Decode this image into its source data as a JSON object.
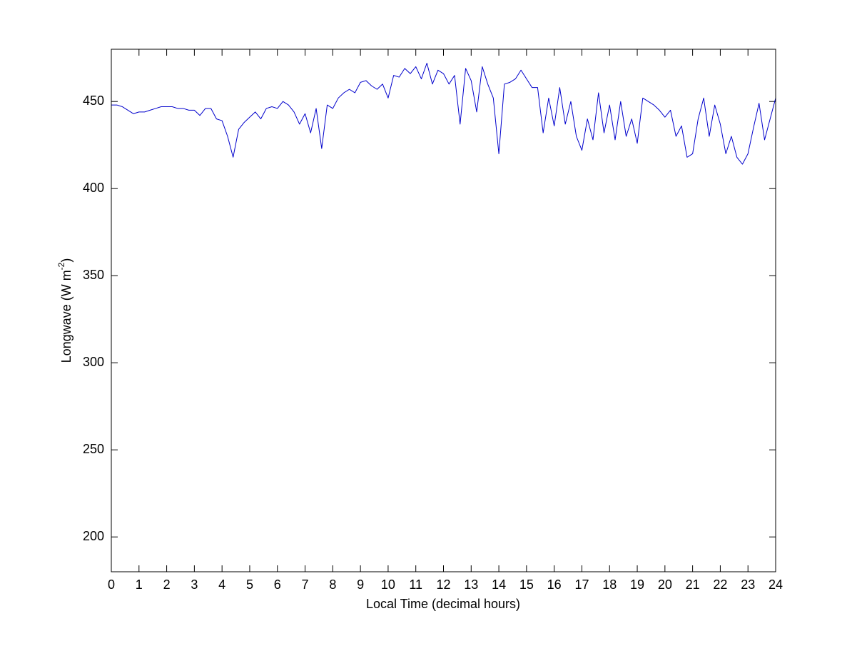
{
  "chart_data": {
    "type": "line",
    "xlabel": "Local Time (decimal hours)",
    "ylabel": {
      "text": "Longwave (W m",
      "superscript": "-2",
      "suffix": ")"
    },
    "xlim": [
      0,
      24
    ],
    "ylim": [
      180,
      480
    ],
    "xticks": [
      0,
      1,
      2,
      3,
      4,
      5,
      6,
      7,
      8,
      9,
      10,
      11,
      12,
      13,
      14,
      15,
      16,
      17,
      18,
      19,
      20,
      21,
      22,
      23,
      24
    ],
    "yticks": [
      200,
      250,
      300,
      350,
      400,
      450
    ],
    "grid": false,
    "x": [
      0,
      0.2,
      0.4,
      0.6,
      0.8,
      1,
      1.2,
      1.4,
      1.6,
      1.8,
      2,
      2.2,
      2.4,
      2.6,
      2.8,
      3,
      3.2,
      3.4,
      3.6,
      3.8,
      4,
      4.2,
      4.4,
      4.6,
      4.8,
      5,
      5.2,
      5.4,
      5.6,
      5.8,
      6,
      6.2,
      6.4,
      6.6,
      6.8,
      7,
      7.2,
      7.4,
      7.6,
      7.8,
      8,
      8.2,
      8.4,
      8.6,
      8.8,
      9,
      9.2,
      9.4,
      9.6,
      9.8,
      10,
      10.2,
      10.4,
      10.6,
      10.8,
      11,
      11.2,
      11.4,
      11.6,
      11.8,
      12,
      12.2,
      12.4,
      12.6,
      12.8,
      13,
      13.2,
      13.4,
      13.6,
      13.8,
      14,
      14.2,
      14.4,
      14.6,
      14.8,
      15,
      15.2,
      15.4,
      15.6,
      15.8,
      16,
      16.2,
      16.4,
      16.6,
      16.8,
      17,
      17.2,
      17.4,
      17.6,
      17.8,
      18,
      18.2,
      18.4,
      18.6,
      18.8,
      19,
      19.2,
      19.4,
      19.6,
      19.8,
      20,
      20.2,
      20.4,
      20.6,
      20.8,
      21,
      21.2,
      21.4,
      21.6,
      21.8,
      22,
      22.2,
      22.4,
      22.6,
      22.8,
      23,
      23.2,
      23.4,
      23.6,
      23.8,
      24
    ],
    "series": [
      {
        "color": "#0000cc",
        "values": [
          448,
          448,
          447,
          445,
          443,
          444,
          444,
          445,
          446,
          447,
          447,
          447,
          446,
          446,
          445,
          445,
          442,
          446,
          446,
          440,
          439,
          430,
          418,
          434,
          438,
          441,
          444,
          440,
          446,
          447,
          446,
          450,
          448,
          444,
          437,
          443,
          432,
          446,
          423,
          448,
          446,
          452,
          455,
          457,
          455,
          461,
          462,
          459,
          457,
          460,
          452,
          465,
          464,
          469,
          466,
          470,
          463,
          472,
          460,
          468,
          466,
          460,
          465,
          437,
          469,
          462,
          444,
          470,
          460,
          452,
          420,
          460,
          461,
          463,
          468,
          463,
          458,
          458,
          432,
          452,
          436,
          458,
          437,
          450,
          430,
          422,
          440,
          428,
          455,
          432,
          448,
          428,
          450,
          430,
          440,
          426,
          452,
          450,
          448,
          445,
          441,
          445,
          430,
          436,
          418,
          420,
          440,
          452,
          430,
          448,
          437,
          420,
          430,
          418,
          414,
          420,
          435,
          449,
          428,
          440,
          452
        ]
      }
    ]
  }
}
